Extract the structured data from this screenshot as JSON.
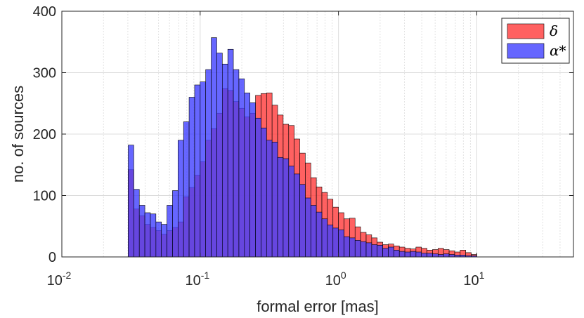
{
  "chart_data": {
    "type": "bar",
    "subtype": "overlaid-histogram",
    "xscale": "log",
    "xlabel": "formal error [mas]",
    "ylabel": "no. of sources",
    "xlim": [
      0.01,
      50
    ],
    "ylim": [
      0,
      400
    ],
    "xticks": [
      {
        "value": 0.01,
        "base": "10",
        "exp": "-2"
      },
      {
        "value": 0.1,
        "base": "10",
        "exp": "-1"
      },
      {
        "value": 1,
        "base": "10",
        "exp": "0"
      },
      {
        "value": 10,
        "base": "10",
        "exp": "1"
      }
    ],
    "yticks": [
      0,
      100,
      200,
      300,
      400
    ],
    "grid": true,
    "legend_position": "top-right",
    "bin_edges_log10": [
      -1.52,
      -1.48,
      -1.44,
      -1.4,
      -1.36,
      -1.32,
      -1.28,
      -1.24,
      -1.2,
      -1.16,
      -1.12,
      -1.08,
      -1.04,
      -1.0,
      -0.96,
      -0.92,
      -0.88,
      -0.84,
      -0.8,
      -0.76,
      -0.72,
      -0.68,
      -0.64,
      -0.6,
      -0.56,
      -0.52,
      -0.48,
      -0.44,
      -0.4,
      -0.36,
      -0.32,
      -0.28,
      -0.24,
      -0.2,
      -0.16,
      -0.12,
      -0.08,
      -0.04,
      0.0,
      0.04,
      0.08,
      0.12,
      0.16,
      0.2,
      0.24,
      0.28,
      0.32,
      0.36,
      0.4,
      0.44,
      0.48,
      0.52,
      0.56,
      0.6,
      0.64,
      0.68,
      0.72,
      0.76,
      0.8,
      0.84,
      0.88,
      0.92,
      0.96,
      1.0
    ],
    "series": [
      {
        "name": "δ",
        "color": "#ff3a3a",
        "values": [
          142,
          78,
          67,
          53,
          48,
          43,
          37,
          43,
          48,
          57,
          98,
          113,
          133,
          155,
          190,
          209,
          234,
          274,
          271,
          253,
          242,
          228,
          234,
          263,
          266,
          267,
          247,
          231,
          216,
          214,
          192,
          169,
          153,
          129,
          114,
          105,
          94,
          81,
          72,
          62,
          63,
          49,
          40,
          36,
          31,
          24,
          20,
          21,
          18,
          16,
          14,
          13,
          16,
          14,
          11,
          12,
          14,
          12,
          10,
          8,
          11,
          7,
          4
        ]
      },
      {
        "name": "α*",
        "color": "#4040ff",
        "values": [
          182,
          110,
          84,
          72,
          70,
          57,
          53,
          84,
          108,
          190,
          220,
          260,
          280,
          285,
          305,
          357,
          332,
          314,
          338,
          305,
          290,
          267,
          251,
          226,
          210,
          190,
          187,
          162,
          160,
          148,
          135,
          118,
          96,
          84,
          73,
          62,
          52,
          47,
          44,
          33,
          31,
          27,
          25,
          23,
          20,
          19,
          14,
          16,
          11,
          9,
          8,
          9,
          8,
          6,
          6,
          5,
          4,
          5,
          4,
          3,
          3,
          2,
          2
        ]
      }
    ]
  }
}
